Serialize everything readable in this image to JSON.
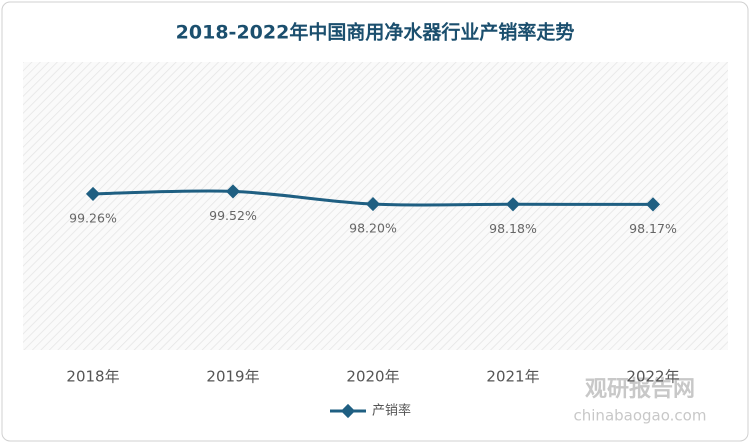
{
  "chart_data": {
    "type": "line",
    "title": "2018-2022年中国商用净水器行业产销率走势",
    "categories": [
      "2018年",
      "2019年",
      "2020年",
      "2021年",
      "2022年"
    ],
    "series": [
      {
        "name": "产销率",
        "color": "#1f5f82",
        "values": [
          99.26,
          99.52,
          98.2,
          98.18,
          98.17
        ],
        "value_labels": [
          "99.26%",
          "99.52%",
          "98.20%",
          "98.18%",
          "98.17%"
        ]
      }
    ],
    "ylim": [
      83,
      113
    ],
    "grid": false,
    "legend": "bottom"
  },
  "watermark": {
    "name": "观研报告网",
    "url": "chinabaogao.com"
  }
}
